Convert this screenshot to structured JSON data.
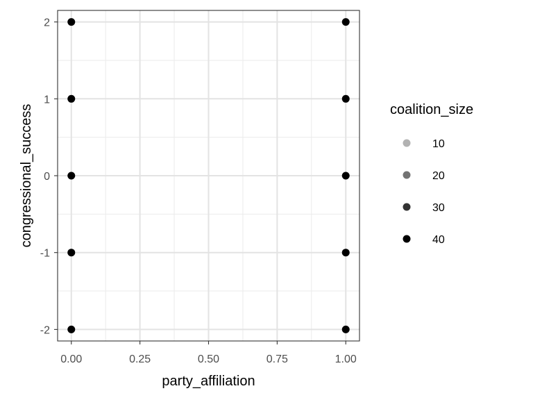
{
  "chart_data": {
    "type": "scatter",
    "xlabel": "party_affiliation",
    "ylabel": "congressional_success",
    "xlim": [
      -0.05,
      1.05
    ],
    "ylim": [
      -2.15,
      2.15
    ],
    "x_ticks": [
      0,
      0.25,
      0.5,
      0.75,
      1
    ],
    "x_tick_labels": [
      "0.00",
      "0.25",
      "0.50",
      "0.75",
      "1.00"
    ],
    "y_ticks": [
      -2,
      -1,
      0,
      1,
      2
    ],
    "y_tick_labels": [
      "-2",
      "-1",
      "0",
      "1",
      "2"
    ],
    "grid": true,
    "legend": {
      "title": "coalition_size",
      "position": "right",
      "entries": [
        {
          "label": "10",
          "value": 10,
          "alpha": 0.3
        },
        {
          "label": "20",
          "value": 20,
          "alpha": 0.55
        },
        {
          "label": "30",
          "value": 30,
          "alpha": 0.8
        },
        {
          "label": "40",
          "value": 40,
          "alpha": 1.0
        }
      ]
    },
    "point_color": "#000000",
    "points": [
      {
        "x": 0,
        "y": 2
      },
      {
        "x": 0,
        "y": 1
      },
      {
        "x": 0,
        "y": 0
      },
      {
        "x": 0,
        "y": -1
      },
      {
        "x": 0,
        "y": -2
      },
      {
        "x": 1,
        "y": 2
      },
      {
        "x": 1,
        "y": 1
      },
      {
        "x": 1,
        "y": 0
      },
      {
        "x": 1,
        "y": -1
      },
      {
        "x": 1,
        "y": -2
      }
    ]
  }
}
